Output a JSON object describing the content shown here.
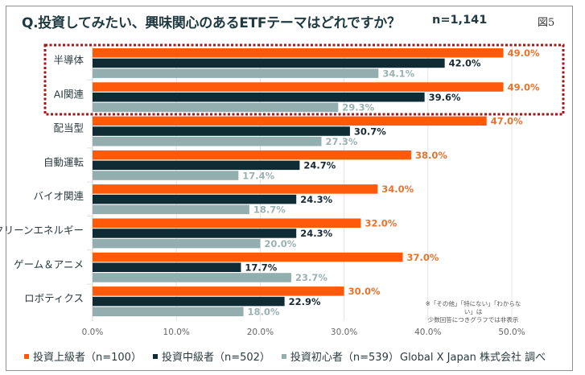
{
  "header": {
    "title": "Q.投資してみたい、興味関心のあるETFテーマはどれですか？",
    "n_total": "n=1,141",
    "figure_label": "図5"
  },
  "note": {
    "line1": "※「その他」「特にない」「わからない」は",
    "line2": "少数回答につきグラフでは非表示"
  },
  "source": "Global X Japan 株式会社 調べ",
  "highlight": {
    "categories": [
      "半導体",
      "AI関連"
    ],
    "color": "#9b1b1b",
    "style": "dotted"
  },
  "chart_data": {
    "type": "bar",
    "orientation": "horizontal",
    "title": "Q.投資してみたい、興味関心のあるETFテーマはどれですか？",
    "xlabel": "",
    "ylabel": "",
    "xlim": [
      0,
      50
    ],
    "x_ticks": [
      0,
      10,
      20,
      30,
      40,
      50
    ],
    "x_tick_labels": [
      "0.0%",
      "10.0%",
      "20.0%",
      "30.0%",
      "40.0%",
      "50.0%"
    ],
    "grid": "vertical",
    "legend_position": "bottom-left",
    "categories": [
      "半導体",
      "AI関連",
      "配当型",
      "自動運転",
      "バイオ関連",
      "クリーンエネルギー",
      "ゲーム＆アニメ",
      "ロボティクス"
    ],
    "series": [
      {
        "name": "投資上級者（n=100）",
        "color": "#ff5a0a",
        "label_color": "#e8732e",
        "values": [
          49.0,
          49.0,
          47.0,
          38.0,
          34.0,
          32.0,
          37.0,
          30.0
        ],
        "labels": [
          "49.0%",
          "49.0%",
          "47.0%",
          "38.0%",
          "34.0%",
          "32.0%",
          "37.0%",
          "30.0%"
        ]
      },
      {
        "name": "投資中級者（n=502）",
        "color": "#0f2b33",
        "label_color": "#1a2a30",
        "values": [
          42.0,
          39.6,
          30.7,
          24.7,
          24.3,
          24.3,
          17.7,
          22.9
        ],
        "labels": [
          "42.0%",
          "39.6%",
          "30.7%",
          "24.7%",
          "24.3%",
          "24.3%",
          "17.7%",
          "22.9%"
        ]
      },
      {
        "name": "投資初心者（n=539）",
        "color": "#93aeaf",
        "label_color": "#9bb2b3",
        "values": [
          34.1,
          29.3,
          27.3,
          17.4,
          18.7,
          20.0,
          23.7,
          18.0
        ],
        "labels": [
          "34.1%",
          "29.3%",
          "27.3%",
          "17.4%",
          "18.7%",
          "20.0%",
          "23.7%",
          "18.0%"
        ]
      }
    ]
  }
}
